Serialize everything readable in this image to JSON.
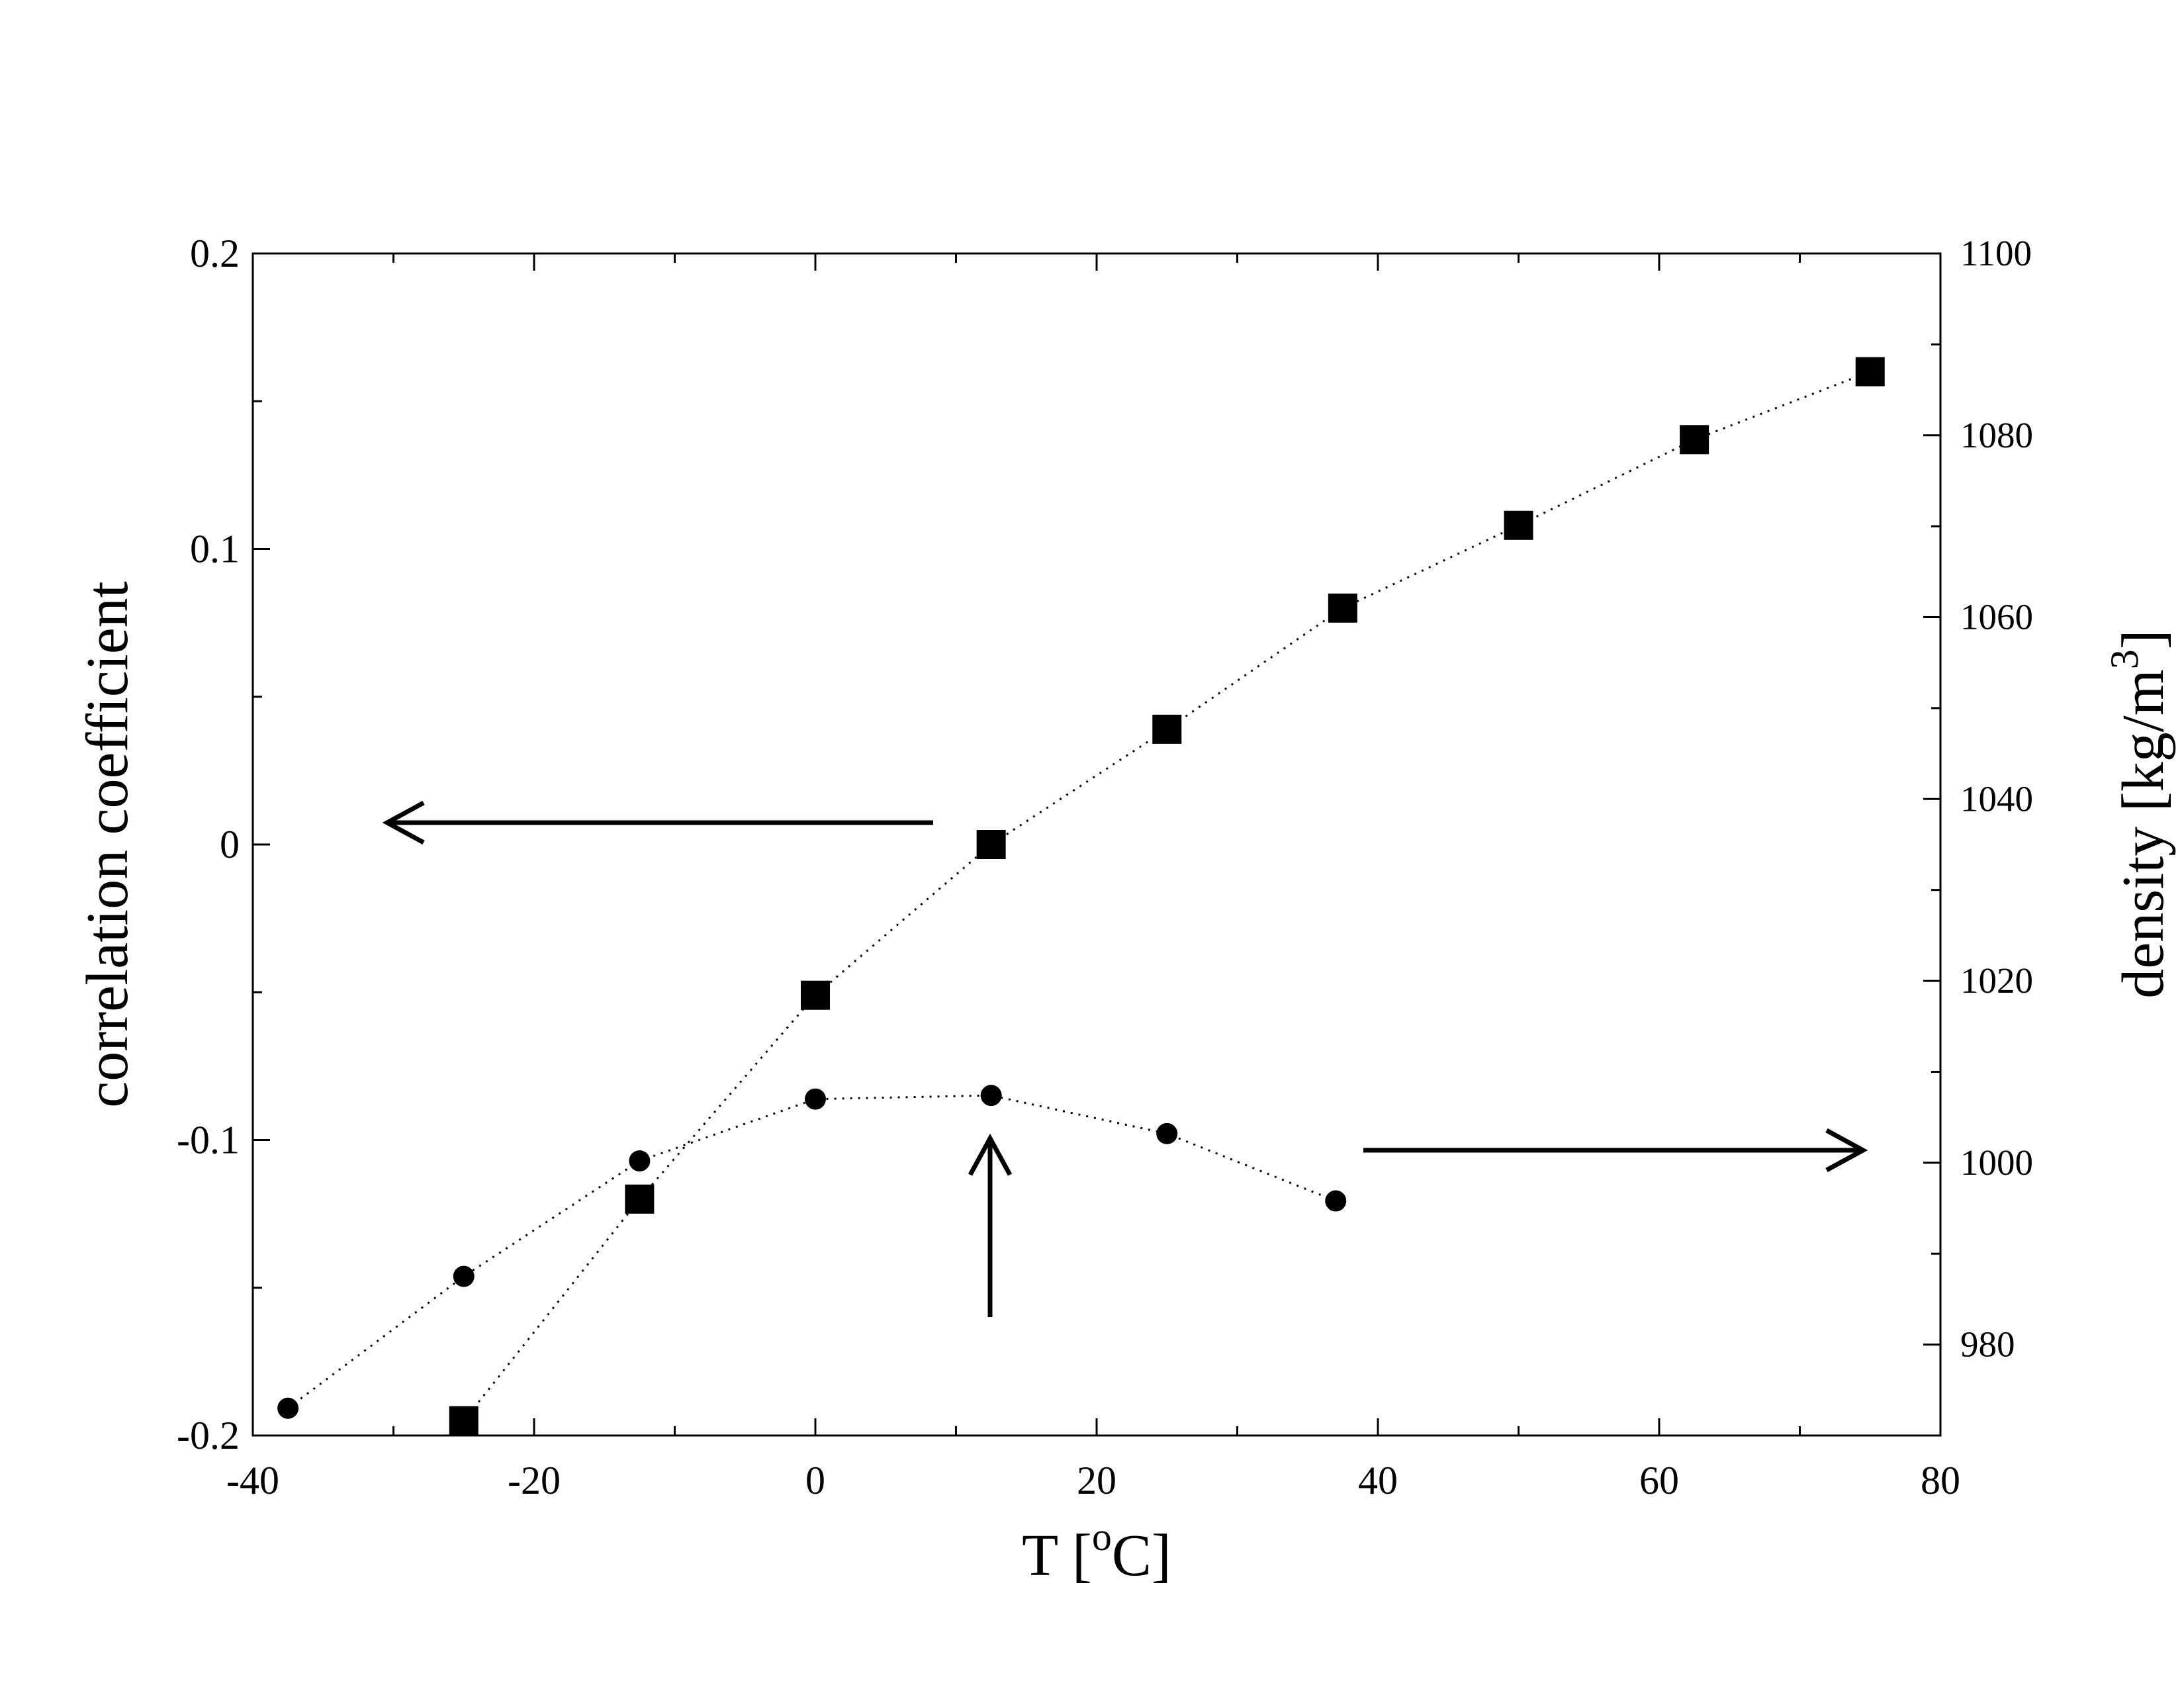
{
  "chart_data": {
    "type": "line",
    "xlabel": "T [",
    "xlabel_sup": "o",
    "xlabel_tail": "C]",
    "ylabel_left": "correlation coefficient",
    "ylabel_right": "density [kg/m",
    "ylabel_right_sup": "3",
    "ylabel_right_tail": "]",
    "xlim": [
      -40,
      80
    ],
    "ylim_left": [
      -0.2,
      0.2
    ],
    "ylim_right": [
      970,
      1100
    ],
    "x_ticks": [
      -40,
      -20,
      0,
      20,
      40,
      60,
      80
    ],
    "x_tick_labels": [
      "-40",
      "-20",
      "0",
      "20",
      "40",
      "60",
      "80"
    ],
    "y_left_ticks": [
      -0.2,
      -0.1,
      0,
      0.1,
      0.2
    ],
    "y_left_tick_labels": [
      "-0.2",
      "-0.1",
      "0",
      "0.1",
      "0.2"
    ],
    "y_right_ticks": [
      980,
      1000,
      1020,
      1040,
      1060,
      1080,
      1100
    ],
    "y_right_tick_labels": [
      "980",
      "1000",
      "1020",
      "1040",
      "1060",
      "1080",
      "1100"
    ],
    "grid": false,
    "series": [
      {
        "axis": "left",
        "marker": "square",
        "line_style": "dotted",
        "color": "#000000",
        "x": [
          -25,
          -12.5,
          0,
          12.5,
          25,
          37.5,
          50,
          62.5,
          75
        ],
        "y": [
          -0.195,
          -0.12,
          -0.051,
          0.0,
          0.039,
          0.08,
          0.108,
          0.137,
          0.16
        ]
      },
      {
        "axis": "right",
        "marker": "circle",
        "line_style": "dotted",
        "color": "#000000",
        "x": [
          -37.5,
          -25,
          -12.5,
          0,
          12.5,
          25,
          37
        ],
        "y": [
          973,
          987.5,
          1000.2,
          1007,
          1007.4,
          1003.2,
          995.8
        ]
      }
    ],
    "annotations": [
      {
        "type": "arrow",
        "direction": "left",
        "meaning": "points to left axis"
      },
      {
        "type": "arrow",
        "direction": "right",
        "meaning": "points to right axis"
      },
      {
        "type": "arrow",
        "direction": "up",
        "meaning": "marks density maximum"
      }
    ]
  }
}
